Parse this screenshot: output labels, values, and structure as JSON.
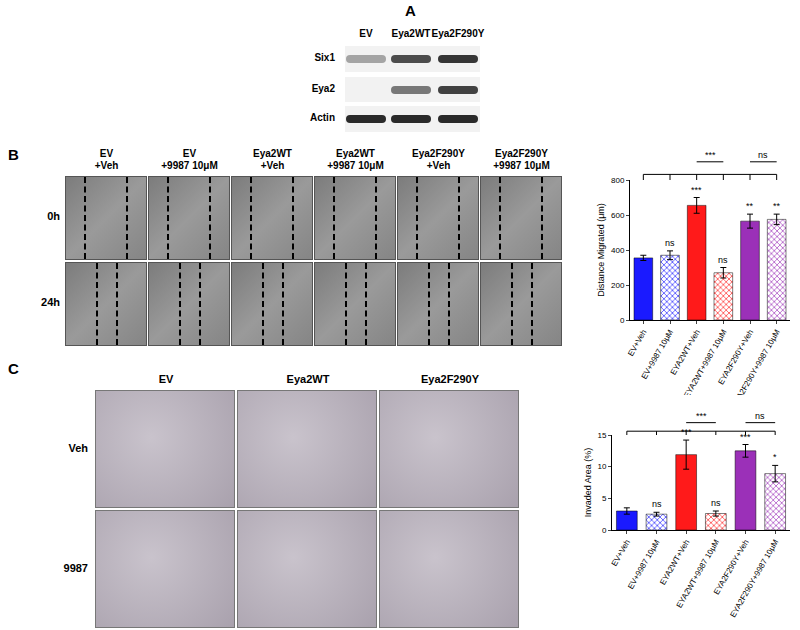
{
  "panel_labels": [
    "A",
    "B",
    "C"
  ],
  "western_blot": {
    "lanes": [
      "EV",
      "Eya2WT",
      "Eya2F290Y"
    ],
    "rows": [
      "Six1",
      "Eya2",
      "Actin"
    ]
  },
  "scratch_assay": {
    "columns": [
      [
        "EV",
        "+Veh"
      ],
      [
        "EV",
        "+9987 10μM"
      ],
      [
        "Eya2WT",
        "+Veh"
      ],
      [
        "Eya2WT",
        "+9987 10μM"
      ],
      [
        "Eya2F290Y",
        "+Veh"
      ],
      [
        "Eya2F290Y",
        "+9987 10μM"
      ]
    ],
    "rows": [
      "0h",
      "24h"
    ]
  },
  "invasion_assay": {
    "columns": [
      "EV",
      "Eya2WT",
      "Eya2F290Y"
    ],
    "rows": [
      "Veh",
      "9987"
    ]
  },
  "chart_data": [
    {
      "type": "bar",
      "ylabel": "Distance Migrated (μm)",
      "categories": [
        "EV+Veh",
        "EV+9987 10μM",
        "EYA2WT+Veh",
        "EYA2WT+9987 10μM",
        "EYA2F290Y+Veh",
        "EYA2F290Y+9987 10μM"
      ],
      "values": [
        355,
        370,
        655,
        270,
        565,
        575
      ],
      "errors": [
        15,
        25,
        45,
        30,
        40,
        30
      ],
      "colors": [
        "#1a1aff",
        "#1a1aff",
        "#ff1a1a",
        "#ff1a1a",
        "#9b30b8",
        "#9b30b8"
      ],
      "annotations": [
        null,
        "ns",
        "***",
        "ns",
        "**",
        "**"
      ],
      "comparisons": [
        {
          "groups": [
            "EYA2WT+Veh",
            "EYA2WT+9987 10μM"
          ],
          "label": "***"
        },
        {
          "groups": [
            "EYA2F290Y+Veh",
            "EYA2F290Y+9987 10μM"
          ],
          "label": "ns"
        }
      ],
      "ylim": [
        0,
        800
      ],
      "yticks": [
        0,
        200,
        400,
        600,
        800
      ],
      "grid": false
    },
    {
      "type": "bar",
      "ylabel": "Invaded Area (%)",
      "categories": [
        "EV+Veh",
        "EV+9987 10μM",
        "EYA2WT+Veh",
        "EYA2WT+9987 10μM",
        "EYA2F290Y+Veh",
        "EYA2F290Y+9987 10μM"
      ],
      "values": [
        3.0,
        2.5,
        11.9,
        2.6,
        12.5,
        8.9
      ],
      "errors": [
        0.5,
        0.3,
        2.3,
        0.4,
        1.0,
        1.3
      ],
      "colors": [
        "#1a1aff",
        "#1a1aff",
        "#ff1a1a",
        "#ff1a1a",
        "#9b30b8",
        "#9b30b8"
      ],
      "annotations": [
        null,
        "ns",
        "***",
        "ns",
        "***",
        "*"
      ],
      "comparisons": [
        {
          "groups": [
            "EYA2WT+Veh",
            "EYA2WT+9987 10μM"
          ],
          "label": "***"
        },
        {
          "groups": [
            "EYA2F290Y+Veh",
            "EYA2F290Y+9987 10μM"
          ],
          "label": "ns"
        }
      ],
      "ylim": [
        0,
        15
      ],
      "yticks": [
        0,
        5,
        10,
        15
      ],
      "grid": false
    }
  ]
}
